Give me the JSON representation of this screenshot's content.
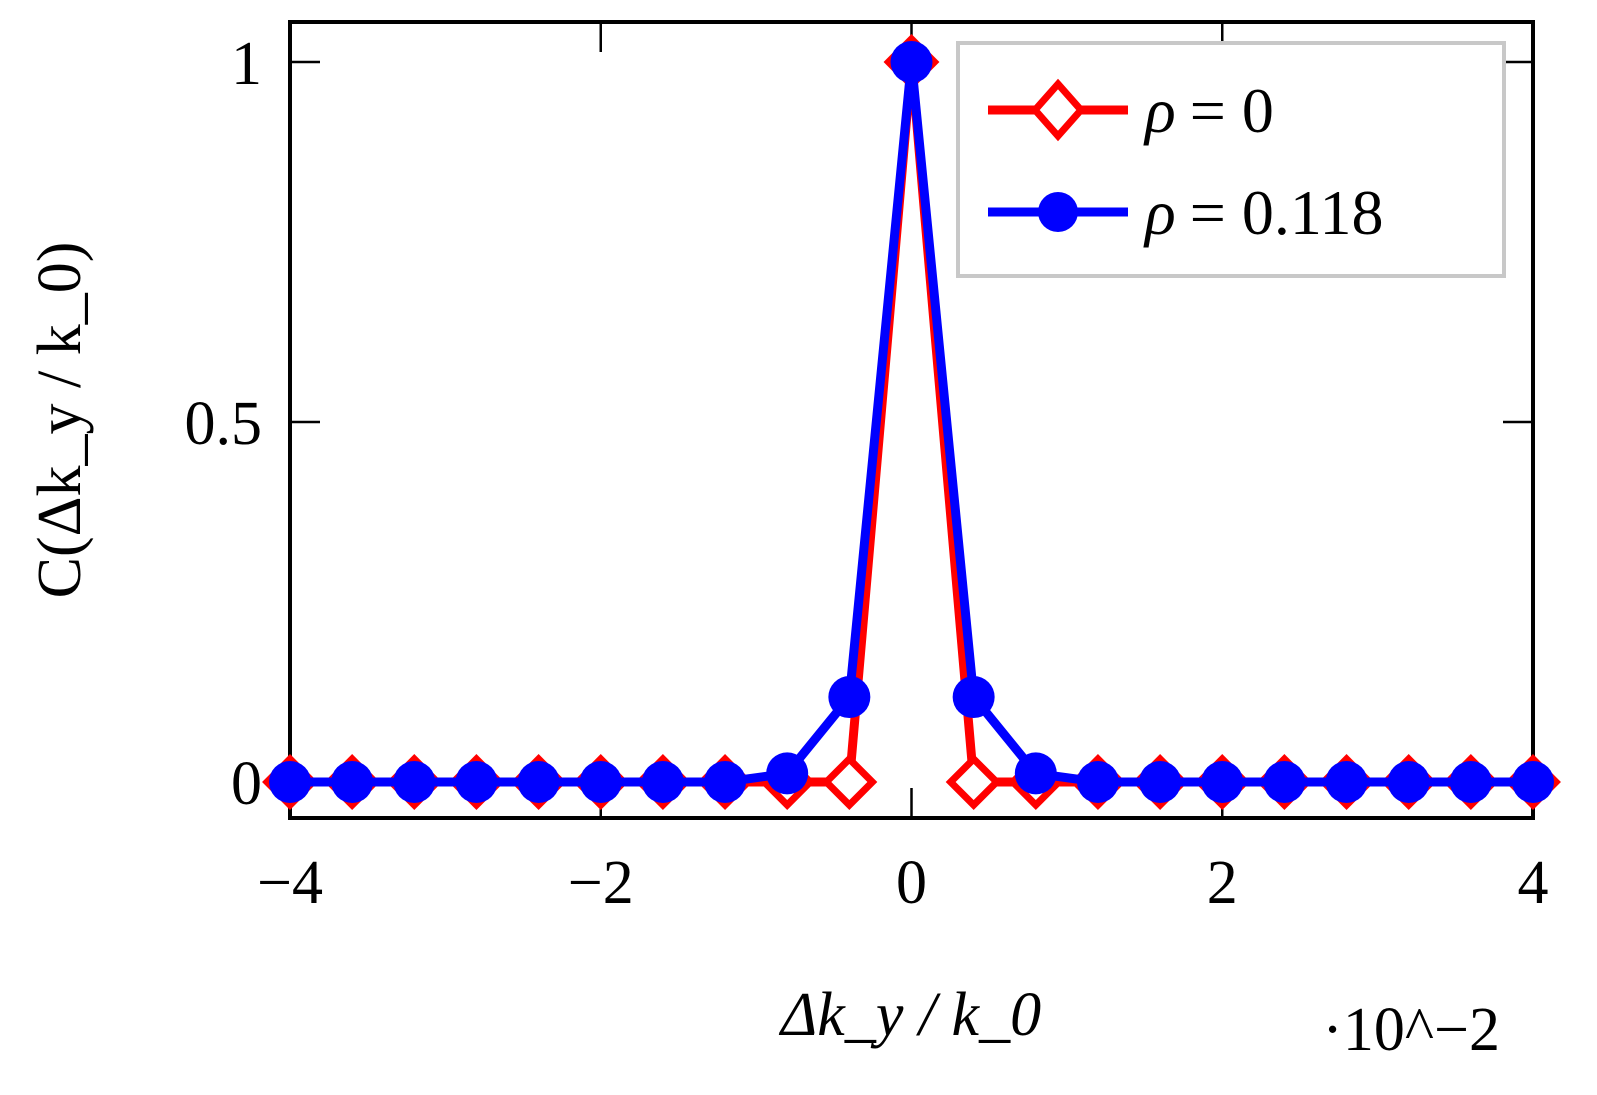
{
  "chart_data": {
    "type": "line",
    "title": "",
    "xlabel": "Δk_y / k_0",
    "ylabel": "C(Δk_y / k_0)",
    "x_scale_note": "·10^−2",
    "xlim": [
      -4,
      4
    ],
    "ylim": [
      -0.05,
      1.05
    ],
    "x_ticks": [
      -4,
      -2,
      0,
      2,
      4
    ],
    "x_tick_labels": [
      "−4",
      "−2",
      "0",
      "2",
      "4"
    ],
    "y_ticks": [
      0,
      0.5,
      1
    ],
    "y_tick_labels": [
      "0",
      "0.5",
      "1"
    ],
    "grid": false,
    "legend_position": "top-right",
    "x": [
      -4.0,
      -3.6,
      -3.2,
      -2.8,
      -2.4,
      -2.0,
      -1.6,
      -1.2,
      -0.8,
      -0.4,
      0.0,
      0.4,
      0.8,
      1.2,
      1.6,
      2.0,
      2.4,
      2.8,
      3.2,
      3.6,
      4.0
    ],
    "series": [
      {
        "name": "ρ = 0",
        "legend_symbol": "ρ",
        "legend_value": "= 0",
        "color": "#ff0000",
        "marker": "diamond-open",
        "values": [
          0,
          0,
          0,
          0,
          0,
          0,
          0,
          0,
          0,
          0,
          1,
          0,
          0,
          0,
          0,
          0,
          0,
          0,
          0,
          0,
          0
        ]
      },
      {
        "name": "ρ = 0.118",
        "legend_symbol": "ρ",
        "legend_value": "= 0.118",
        "color": "#0000ff",
        "marker": "circle-filled",
        "values": [
          0,
          0,
          0,
          0,
          0,
          0,
          0,
          0,
          0.012,
          0.118,
          1,
          0.118,
          0.012,
          0,
          0,
          0,
          0,
          0,
          0,
          0,
          0
        ]
      }
    ]
  }
}
